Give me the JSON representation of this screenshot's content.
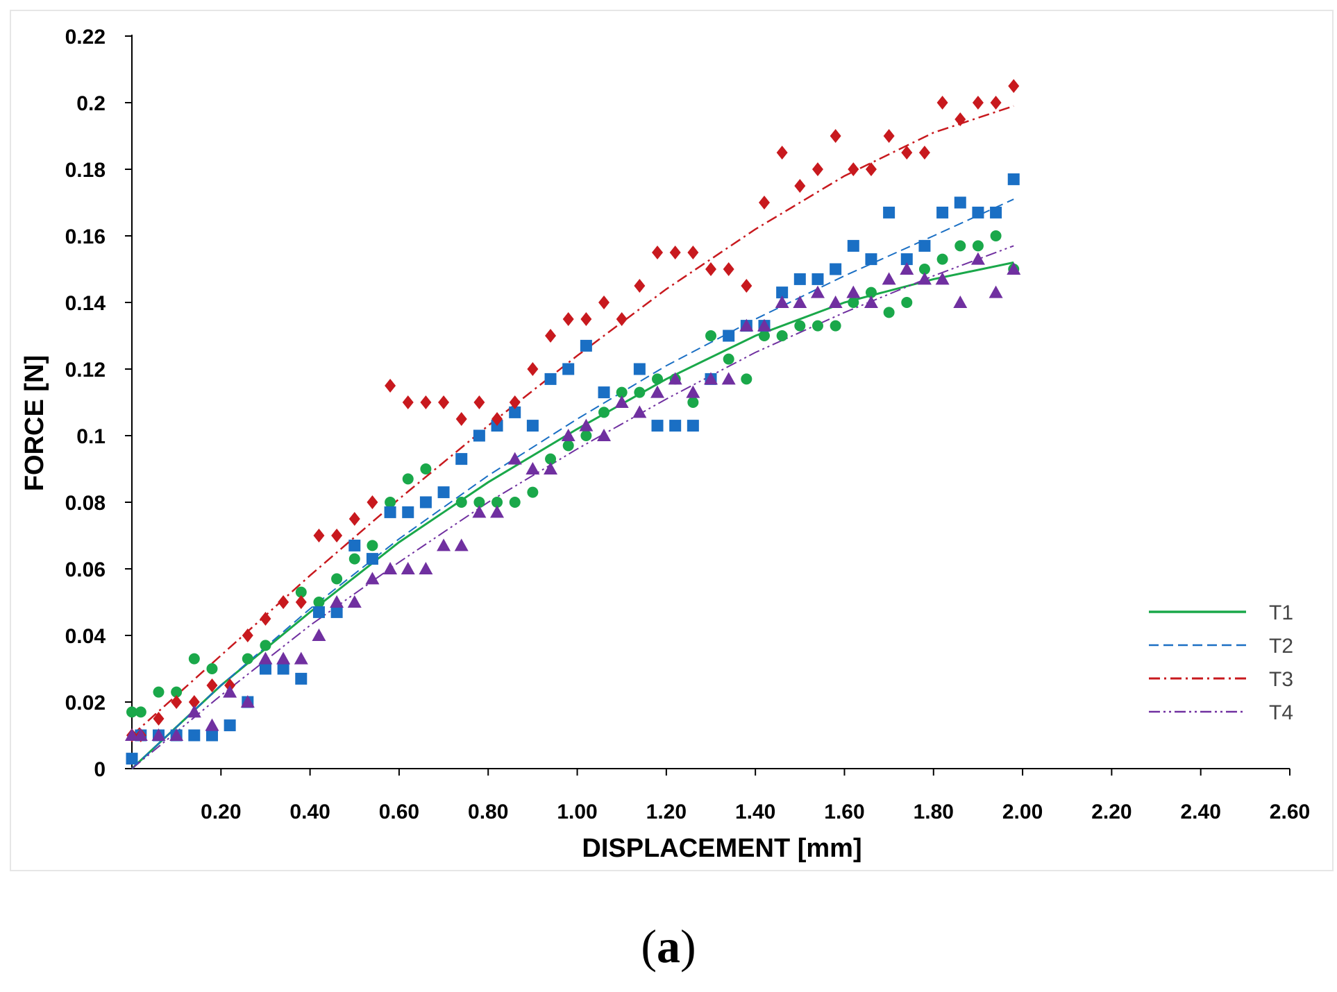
{
  "figure": {
    "panel_label_open": "(",
    "panel_label_letter": "a",
    "panel_label_close": ")"
  },
  "chart_data": {
    "type": "scatter",
    "title": "",
    "xlabel": "DISPLACEMENT  [mm]",
    "ylabel": "FORCE [N]",
    "xlim": [
      0,
      2.6
    ],
    "ylim": [
      0,
      0.22
    ],
    "xticks": [
      0.2,
      0.4,
      0.6,
      0.8,
      1.0,
      1.2,
      1.4,
      1.6,
      1.8,
      2.0,
      2.2,
      2.4,
      2.6
    ],
    "xtick_labels": [
      "0.20",
      "0.40",
      "0.60",
      "0.80",
      "1.00",
      "1.20",
      "1.40",
      "1.60",
      "1.80",
      "2.00",
      "2.20",
      "2.40",
      "2.60"
    ],
    "yticks": [
      0,
      0.02,
      0.04,
      0.06,
      0.08,
      0.1,
      0.12,
      0.14,
      0.16,
      0.18,
      0.2,
      0.22
    ],
    "ytick_labels": [
      "0",
      "0.02",
      "0.04",
      "0.06",
      "0.08",
      "0.1",
      "0.12",
      "0.14",
      "0.16",
      "0.18",
      "0.2",
      "0.22"
    ],
    "grid": false,
    "legend_position": "right",
    "series": [
      {
        "name": "T1",
        "color": "#1aa84a",
        "marker": "circle",
        "line_style": "solid",
        "points": [
          [
            0.0,
            0.017
          ],
          [
            0.02,
            0.017
          ],
          [
            0.06,
            0.023
          ],
          [
            0.1,
            0.023
          ],
          [
            0.14,
            0.033
          ],
          [
            0.18,
            0.03
          ],
          [
            0.26,
            0.033
          ],
          [
            0.3,
            0.037
          ],
          [
            0.38,
            0.053
          ],
          [
            0.42,
            0.05
          ],
          [
            0.46,
            0.057
          ],
          [
            0.5,
            0.063
          ],
          [
            0.54,
            0.067
          ],
          [
            0.58,
            0.08
          ],
          [
            0.62,
            0.087
          ],
          [
            0.66,
            0.09
          ],
          [
            0.74,
            0.08
          ],
          [
            0.78,
            0.08
          ],
          [
            0.82,
            0.08
          ],
          [
            0.86,
            0.08
          ],
          [
            0.9,
            0.083
          ],
          [
            0.94,
            0.093
          ],
          [
            0.98,
            0.097
          ],
          [
            1.02,
            0.1
          ],
          [
            1.06,
            0.107
          ],
          [
            1.1,
            0.113
          ],
          [
            1.14,
            0.113
          ],
          [
            1.18,
            0.117
          ],
          [
            1.22,
            0.117
          ],
          [
            1.26,
            0.11
          ],
          [
            1.3,
            0.13
          ],
          [
            1.34,
            0.123
          ],
          [
            1.38,
            0.117
          ],
          [
            1.42,
            0.13
          ],
          [
            1.46,
            0.13
          ],
          [
            1.5,
            0.133
          ],
          [
            1.54,
            0.133
          ],
          [
            1.58,
            0.133
          ],
          [
            1.62,
            0.14
          ],
          [
            1.66,
            0.143
          ],
          [
            1.7,
            0.137
          ],
          [
            1.74,
            0.14
          ],
          [
            1.78,
            0.15
          ],
          [
            1.82,
            0.153
          ],
          [
            1.86,
            0.157
          ],
          [
            1.9,
            0.157
          ],
          [
            1.94,
            0.16
          ],
          [
            1.98,
            0.15
          ]
        ],
        "fit": [
          [
            0.0,
            0.0
          ],
          [
            0.2,
            0.025
          ],
          [
            0.4,
            0.047
          ],
          [
            0.6,
            0.068
          ],
          [
            0.8,
            0.086
          ],
          [
            1.0,
            0.102
          ],
          [
            1.2,
            0.117
          ],
          [
            1.4,
            0.13
          ],
          [
            1.6,
            0.14
          ],
          [
            1.8,
            0.147
          ],
          [
            1.98,
            0.152
          ]
        ]
      },
      {
        "name": "T2",
        "color": "#1a6fc4",
        "marker": "square",
        "line_style": "dashed",
        "points": [
          [
            0.0,
            0.003
          ],
          [
            0.02,
            0.01
          ],
          [
            0.06,
            0.01
          ],
          [
            0.1,
            0.01
          ],
          [
            0.14,
            0.01
          ],
          [
            0.18,
            0.01
          ],
          [
            0.22,
            0.013
          ],
          [
            0.26,
            0.02
          ],
          [
            0.3,
            0.03
          ],
          [
            0.34,
            0.03
          ],
          [
            0.38,
            0.027
          ],
          [
            0.42,
            0.047
          ],
          [
            0.46,
            0.047
          ],
          [
            0.5,
            0.067
          ],
          [
            0.54,
            0.063
          ],
          [
            0.58,
            0.077
          ],
          [
            0.62,
            0.077
          ],
          [
            0.66,
            0.08
          ],
          [
            0.7,
            0.083
          ],
          [
            0.74,
            0.093
          ],
          [
            0.78,
            0.1
          ],
          [
            0.82,
            0.103
          ],
          [
            0.86,
            0.107
          ],
          [
            0.9,
            0.103
          ],
          [
            0.94,
            0.117
          ],
          [
            0.98,
            0.12
          ],
          [
            1.02,
            0.127
          ],
          [
            1.06,
            0.113
          ],
          [
            1.14,
            0.12
          ],
          [
            1.18,
            0.103
          ],
          [
            1.22,
            0.103
          ],
          [
            1.26,
            0.103
          ],
          [
            1.3,
            0.117
          ],
          [
            1.34,
            0.13
          ],
          [
            1.38,
            0.133
          ],
          [
            1.42,
            0.133
          ],
          [
            1.46,
            0.143
          ],
          [
            1.5,
            0.147
          ],
          [
            1.54,
            0.147
          ],
          [
            1.58,
            0.15
          ],
          [
            1.62,
            0.157
          ],
          [
            1.66,
            0.153
          ],
          [
            1.7,
            0.167
          ],
          [
            1.74,
            0.153
          ],
          [
            1.78,
            0.157
          ],
          [
            1.82,
            0.167
          ],
          [
            1.86,
            0.17
          ],
          [
            1.9,
            0.167
          ],
          [
            1.94,
            0.167
          ],
          [
            1.98,
            0.177
          ]
        ],
        "fit": [
          [
            0.0,
            0.0
          ],
          [
            0.2,
            0.025
          ],
          [
            0.4,
            0.048
          ],
          [
            0.6,
            0.069
          ],
          [
            0.8,
            0.088
          ],
          [
            1.0,
            0.105
          ],
          [
            1.2,
            0.121
          ],
          [
            1.4,
            0.135
          ],
          [
            1.6,
            0.148
          ],
          [
            1.8,
            0.16
          ],
          [
            1.98,
            0.171
          ]
        ]
      },
      {
        "name": "T3",
        "color": "#c8191e",
        "marker": "diamond",
        "line_style": "dashdot",
        "points": [
          [
            0.0,
            0.01
          ],
          [
            0.02,
            0.01
          ],
          [
            0.06,
            0.015
          ],
          [
            0.1,
            0.02
          ],
          [
            0.14,
            0.02
          ],
          [
            0.18,
            0.025
          ],
          [
            0.22,
            0.025
          ],
          [
            0.26,
            0.04
          ],
          [
            0.3,
            0.045
          ],
          [
            0.34,
            0.05
          ],
          [
            0.38,
            0.05
          ],
          [
            0.42,
            0.07
          ],
          [
            0.46,
            0.07
          ],
          [
            0.5,
            0.075
          ],
          [
            0.54,
            0.08
          ],
          [
            0.58,
            0.115
          ],
          [
            0.62,
            0.11
          ],
          [
            0.66,
            0.11
          ],
          [
            0.7,
            0.11
          ],
          [
            0.74,
            0.105
          ],
          [
            0.78,
            0.11
          ],
          [
            0.82,
            0.105
          ],
          [
            0.86,
            0.11
          ],
          [
            0.9,
            0.12
          ],
          [
            0.94,
            0.13
          ],
          [
            0.98,
            0.135
          ],
          [
            1.02,
            0.135
          ],
          [
            1.06,
            0.14
          ],
          [
            1.1,
            0.135
          ],
          [
            1.14,
            0.145
          ],
          [
            1.18,
            0.155
          ],
          [
            1.22,
            0.155
          ],
          [
            1.26,
            0.155
          ],
          [
            1.3,
            0.15
          ],
          [
            1.34,
            0.15
          ],
          [
            1.38,
            0.145
          ],
          [
            1.42,
            0.17
          ],
          [
            1.46,
            0.185
          ],
          [
            1.5,
            0.175
          ],
          [
            1.54,
            0.18
          ],
          [
            1.58,
            0.19
          ],
          [
            1.62,
            0.18
          ],
          [
            1.66,
            0.18
          ],
          [
            1.7,
            0.19
          ],
          [
            1.74,
            0.185
          ],
          [
            1.78,
            0.185
          ],
          [
            1.82,
            0.2
          ],
          [
            1.86,
            0.195
          ],
          [
            1.9,
            0.2
          ],
          [
            1.94,
            0.2
          ],
          [
            1.98,
            0.205
          ]
        ],
        "fit": [
          [
            0.0,
            0.01
          ],
          [
            0.2,
            0.034
          ],
          [
            0.4,
            0.058
          ],
          [
            0.6,
            0.081
          ],
          [
            0.8,
            0.103
          ],
          [
            1.0,
            0.124
          ],
          [
            1.2,
            0.144
          ],
          [
            1.4,
            0.162
          ],
          [
            1.6,
            0.178
          ],
          [
            1.8,
            0.191
          ],
          [
            1.98,
            0.199
          ]
        ]
      },
      {
        "name": "T4",
        "color": "#7030a0",
        "marker": "triangle",
        "line_style": "dashdotdot",
        "points": [
          [
            0.0,
            0.01
          ],
          [
            0.02,
            0.01
          ],
          [
            0.06,
            0.01
          ],
          [
            0.1,
            0.01
          ],
          [
            0.14,
            0.017
          ],
          [
            0.18,
            0.013
          ],
          [
            0.22,
            0.023
          ],
          [
            0.26,
            0.02
          ],
          [
            0.3,
            0.033
          ],
          [
            0.34,
            0.033
          ],
          [
            0.38,
            0.033
          ],
          [
            0.42,
            0.04
          ],
          [
            0.46,
            0.05
          ],
          [
            0.5,
            0.05
          ],
          [
            0.54,
            0.057
          ],
          [
            0.58,
            0.06
          ],
          [
            0.62,
            0.06
          ],
          [
            0.66,
            0.06
          ],
          [
            0.7,
            0.067
          ],
          [
            0.74,
            0.067
          ],
          [
            0.78,
            0.077
          ],
          [
            0.82,
            0.077
          ],
          [
            0.86,
            0.093
          ],
          [
            0.9,
            0.09
          ],
          [
            0.94,
            0.09
          ],
          [
            0.98,
            0.1
          ],
          [
            1.02,
            0.103
          ],
          [
            1.06,
            0.1
          ],
          [
            1.1,
            0.11
          ],
          [
            1.14,
            0.107
          ],
          [
            1.18,
            0.113
          ],
          [
            1.22,
            0.117
          ],
          [
            1.26,
            0.113
          ],
          [
            1.3,
            0.117
          ],
          [
            1.34,
            0.117
          ],
          [
            1.38,
            0.133
          ],
          [
            1.42,
            0.133
          ],
          [
            1.46,
            0.14
          ],
          [
            1.5,
            0.14
          ],
          [
            1.54,
            0.143
          ],
          [
            1.58,
            0.14
          ],
          [
            1.62,
            0.143
          ],
          [
            1.66,
            0.14
          ],
          [
            1.7,
            0.147
          ],
          [
            1.74,
            0.15
          ],
          [
            1.78,
            0.147
          ],
          [
            1.82,
            0.147
          ],
          [
            1.86,
            0.14
          ],
          [
            1.9,
            0.153
          ],
          [
            1.94,
            0.143
          ],
          [
            1.98,
            0.15
          ]
        ],
        "fit": [
          [
            0.0,
            0.0
          ],
          [
            0.2,
            0.022
          ],
          [
            0.4,
            0.043
          ],
          [
            0.6,
            0.062
          ],
          [
            0.8,
            0.08
          ],
          [
            1.0,
            0.096
          ],
          [
            1.2,
            0.111
          ],
          [
            1.4,
            0.125
          ],
          [
            1.6,
            0.137
          ],
          [
            1.8,
            0.148
          ],
          [
            1.98,
            0.157
          ]
        ]
      }
    ]
  }
}
